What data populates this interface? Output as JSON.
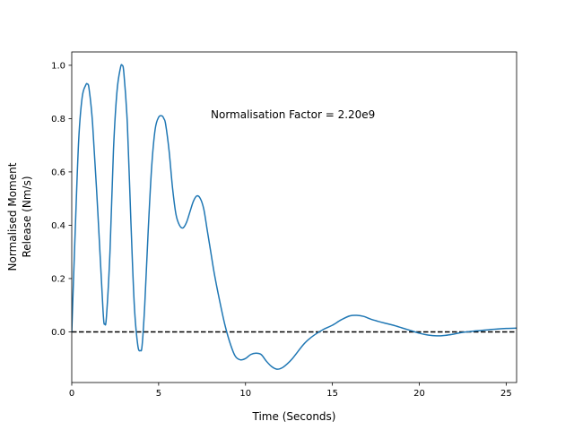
{
  "chart_data": {
    "type": "line",
    "xlabel": "Time (Seconds)",
    "ylabel_lines": [
      "Normalised Moment",
      "Release (Nm/s)"
    ],
    "annotation": "Normalisation Factor = 2.20e9",
    "xlim": [
      0,
      25.6
    ],
    "ylim": [
      -0.19,
      1.05
    ],
    "xticks": [
      0,
      5,
      10,
      15,
      20,
      25
    ],
    "yticks": [
      0.0,
      0.2,
      0.4,
      0.6,
      0.8,
      1.0
    ],
    "xtick_labels": [
      "0",
      "5",
      "10",
      "15",
      "20",
      "25"
    ],
    "ytick_labels": [
      "0.0",
      "0.2",
      "0.4",
      "0.6",
      "0.8",
      "1.0"
    ],
    "line_color": "#1f77b4",
    "reference_line": {
      "y": 0.0,
      "style": "dashed",
      "color": "#000000"
    },
    "series": [
      {
        "values_x": [
          0,
          0.2,
          0.4,
          0.6,
          0.8,
          0.9,
          1.0,
          1.2,
          1.5,
          1.8,
          1.9,
          2.0,
          2.2,
          2.4,
          2.6,
          2.8,
          2.9,
          3.0,
          3.2,
          3.4,
          3.6,
          3.8,
          3.95,
          4.05,
          4.2,
          4.4,
          4.6,
          4.8,
          5.0,
          5.2,
          5.3,
          5.4,
          5.6,
          5.8,
          6.0,
          6.2,
          6.4,
          6.6,
          6.8,
          7.0,
          7.2,
          7.4,
          7.6,
          7.8,
          8.0,
          8.2,
          8.5,
          8.8,
          9.1,
          9.4,
          9.7,
          10.0,
          10.3,
          10.6,
          10.9,
          11.2,
          11.5,
          11.8,
          12.1,
          12.4,
          12.7,
          13.0,
          13.3,
          13.6,
          14.0,
          14.5,
          15.0,
          15.5,
          16.0,
          16.4,
          16.8,
          17.2,
          17.6,
          18.0,
          18.5,
          19.0,
          19.5,
          20.0,
          20.5,
          21.0,
          21.5,
          22.0,
          22.5,
          23.0,
          23.5,
          24.0,
          24.5,
          25.0,
          25.6
        ],
        "values_y": [
          0.0,
          0.38,
          0.72,
          0.88,
          0.925,
          0.93,
          0.91,
          0.78,
          0.45,
          0.08,
          0.03,
          0.06,
          0.3,
          0.68,
          0.9,
          0.99,
          1.0,
          0.97,
          0.78,
          0.42,
          0.1,
          -0.05,
          -0.07,
          -0.05,
          0.1,
          0.38,
          0.62,
          0.76,
          0.805,
          0.81,
          0.8,
          0.78,
          0.68,
          0.54,
          0.44,
          0.4,
          0.39,
          0.41,
          0.45,
          0.49,
          0.51,
          0.5,
          0.46,
          0.38,
          0.3,
          0.22,
          0.12,
          0.03,
          -0.04,
          -0.09,
          -0.105,
          -0.1,
          -0.085,
          -0.08,
          -0.085,
          -0.11,
          -0.13,
          -0.14,
          -0.135,
          -0.12,
          -0.1,
          -0.075,
          -0.05,
          -0.03,
          -0.01,
          0.01,
          0.025,
          0.045,
          0.06,
          0.062,
          0.058,
          0.048,
          0.04,
          0.033,
          0.025,
          0.015,
          0.005,
          -0.005,
          -0.012,
          -0.015,
          -0.013,
          -0.008,
          -0.002,
          0.002,
          0.005,
          0.008,
          0.011,
          0.013,
          0.014
        ]
      }
    ]
  }
}
